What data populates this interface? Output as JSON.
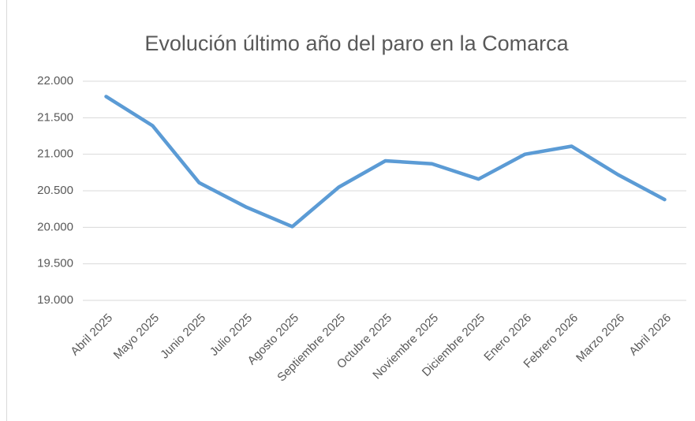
{
  "chart_data": {
    "type": "line",
    "title": "Evolución último año del paro en la Comarca",
    "categories": [
      "Abril 2025",
      "Mayo 2025",
      "Junio 2025",
      "Julio 2025",
      "Agosto 2025",
      "Septiembre 2025",
      "Octubre 2025",
      "Noviembre 2025",
      "Diciembre 2025",
      "Enero 2026",
      "Febrero 2026",
      "Marzo 2026",
      "Abril 2026"
    ],
    "series": [
      {
        "color": "#5b9bd5",
        "values": [
          21790,
          21390,
          20610,
          20280,
          20010,
          20550,
          20910,
          20870,
          20660,
          21000,
          21110,
          20720,
          20380
        ]
      }
    ],
    "ylim": [
      19000,
      22000
    ],
    "yticks": [
      {
        "value": 19000,
        "label": "19.000"
      },
      {
        "value": 19500,
        "label": "19.500"
      },
      {
        "value": 20000,
        "label": "20.000"
      },
      {
        "value": 20500,
        "label": "20.500"
      },
      {
        "value": 21000,
        "label": "21.000"
      },
      {
        "value": 21500,
        "label": "21.500"
      },
      {
        "value": 22000,
        "label": "22.000"
      }
    ],
    "grid": true
  }
}
